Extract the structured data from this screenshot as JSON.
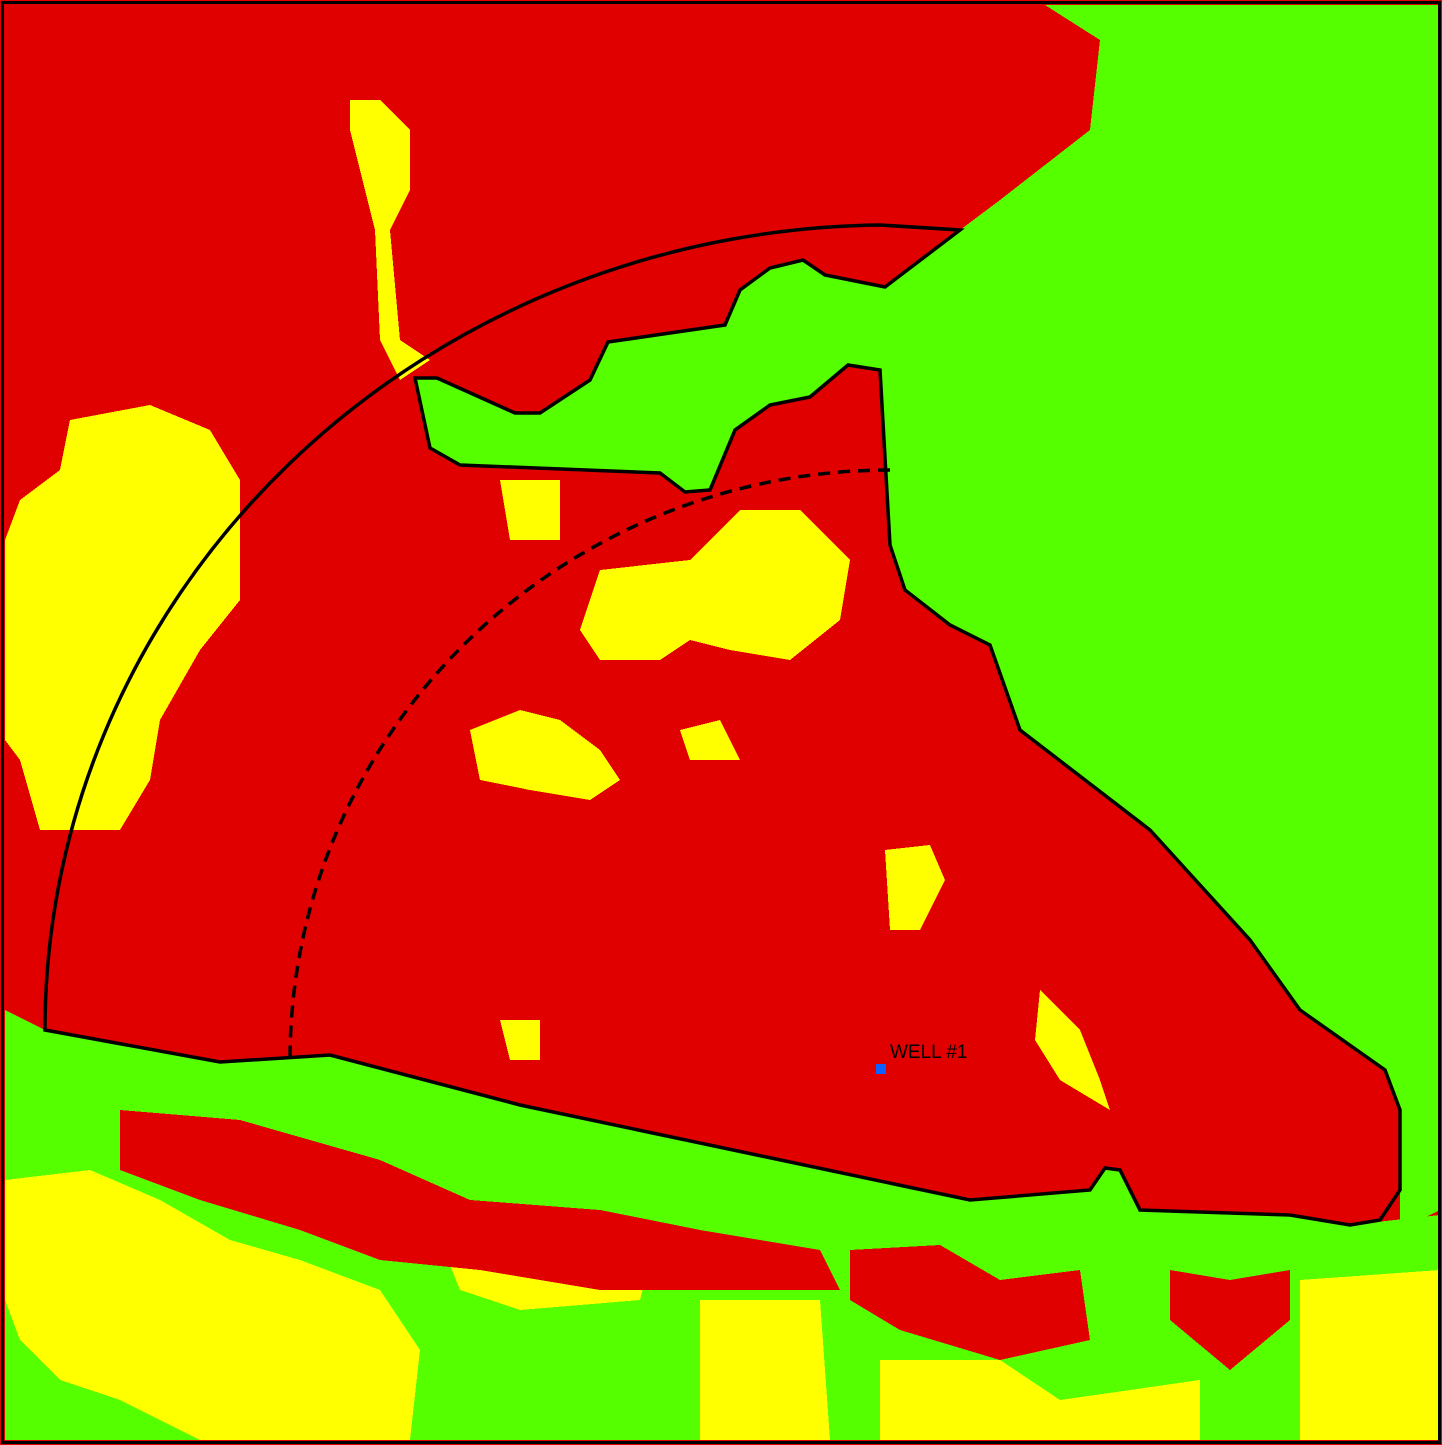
{
  "map": {
    "well_label": "WELL #1"
  }
}
